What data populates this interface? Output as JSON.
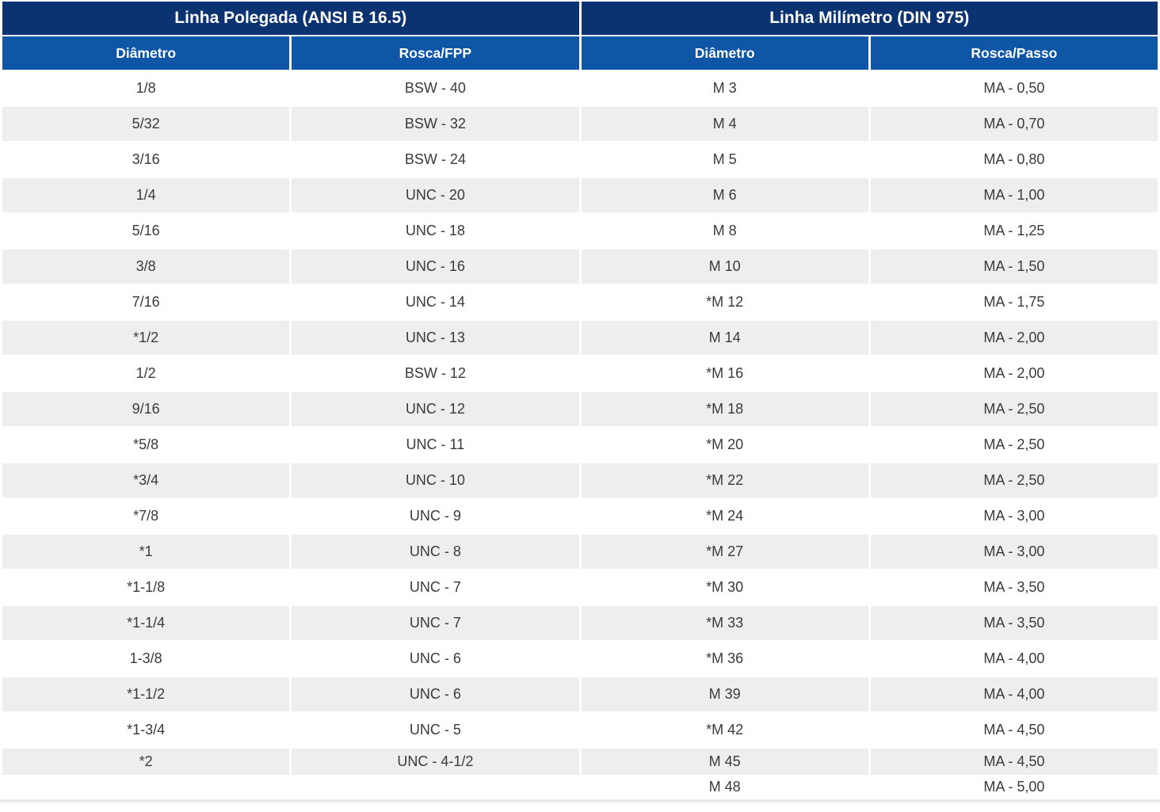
{
  "table": {
    "sections": [
      {
        "title": "Linha Polegada (ANSI B 16.5)",
        "columns": [
          "Diâmetro",
          "Rosca/FPP"
        ]
      },
      {
        "title": "Linha Milímetro (DIN 975)",
        "columns": [
          "Diâmetro",
          "Rosca/Passo"
        ]
      }
    ],
    "rows": [
      [
        "1/8",
        "BSW - 40",
        "M 3",
        "MA - 0,50"
      ],
      [
        "5/32",
        "BSW - 32",
        "M 4",
        "MA - 0,70"
      ],
      [
        "3/16",
        "BSW - 24",
        "M 5",
        "MA - 0,80"
      ],
      [
        "1/4",
        "UNC - 20",
        "M 6",
        "MA - 1,00"
      ],
      [
        "5/16",
        "UNC - 18",
        "M 8",
        "MA - 1,25"
      ],
      [
        "3/8",
        "UNC - 16",
        "M 10",
        "MA - 1,50"
      ],
      [
        "7/16",
        "UNC - 14",
        "*M 12",
        "MA - 1,75"
      ],
      [
        "*1/2",
        "UNC - 13",
        "M 14",
        "MA - 2,00"
      ],
      [
        "1/2",
        "BSW - 12",
        "*M 16",
        "MA - 2,00"
      ],
      [
        "9/16",
        "UNC - 12",
        "*M 18",
        "MA - 2,50"
      ],
      [
        "*5/8",
        "UNC - 11",
        "*M 20",
        "MA - 2,50"
      ],
      [
        "*3/4",
        "UNC - 10",
        "*M 22",
        "MA - 2,50"
      ],
      [
        "*7/8",
        "UNC - 9",
        "*M 24",
        "MA - 3,00"
      ],
      [
        "*1",
        "UNC - 8",
        "*M 27",
        "MA - 3,00"
      ],
      [
        "*1-1/8",
        "UNC - 7",
        "*M 30",
        "MA - 3,50"
      ],
      [
        "*1-1/4",
        "UNC - 7",
        "*M 33",
        "MA - 3,50"
      ],
      [
        "1-3/8",
        "UNC - 6",
        "*M 36",
        "MA - 4,00"
      ],
      [
        "*1-1/2",
        "UNC - 6",
        "M 39",
        "MA - 4,00"
      ],
      [
        "*1-3/4",
        "UNC - 5",
        "*M 42",
        "MA - 4,50"
      ],
      [
        "*2",
        "UNC - 4-1/2",
        "M 45",
        "MA - 4,50"
      ],
      [
        "",
        "",
        "M 48",
        "MA - 5,00"
      ]
    ]
  },
  "colors": {
    "navy": "#0C3371",
    "blue": "#0F57A6",
    "stripe": "#EEEEEE",
    "text": "#3A3A3A",
    "header_text": "#FFFFFF",
    "rule": "#E9E9E9"
  }
}
